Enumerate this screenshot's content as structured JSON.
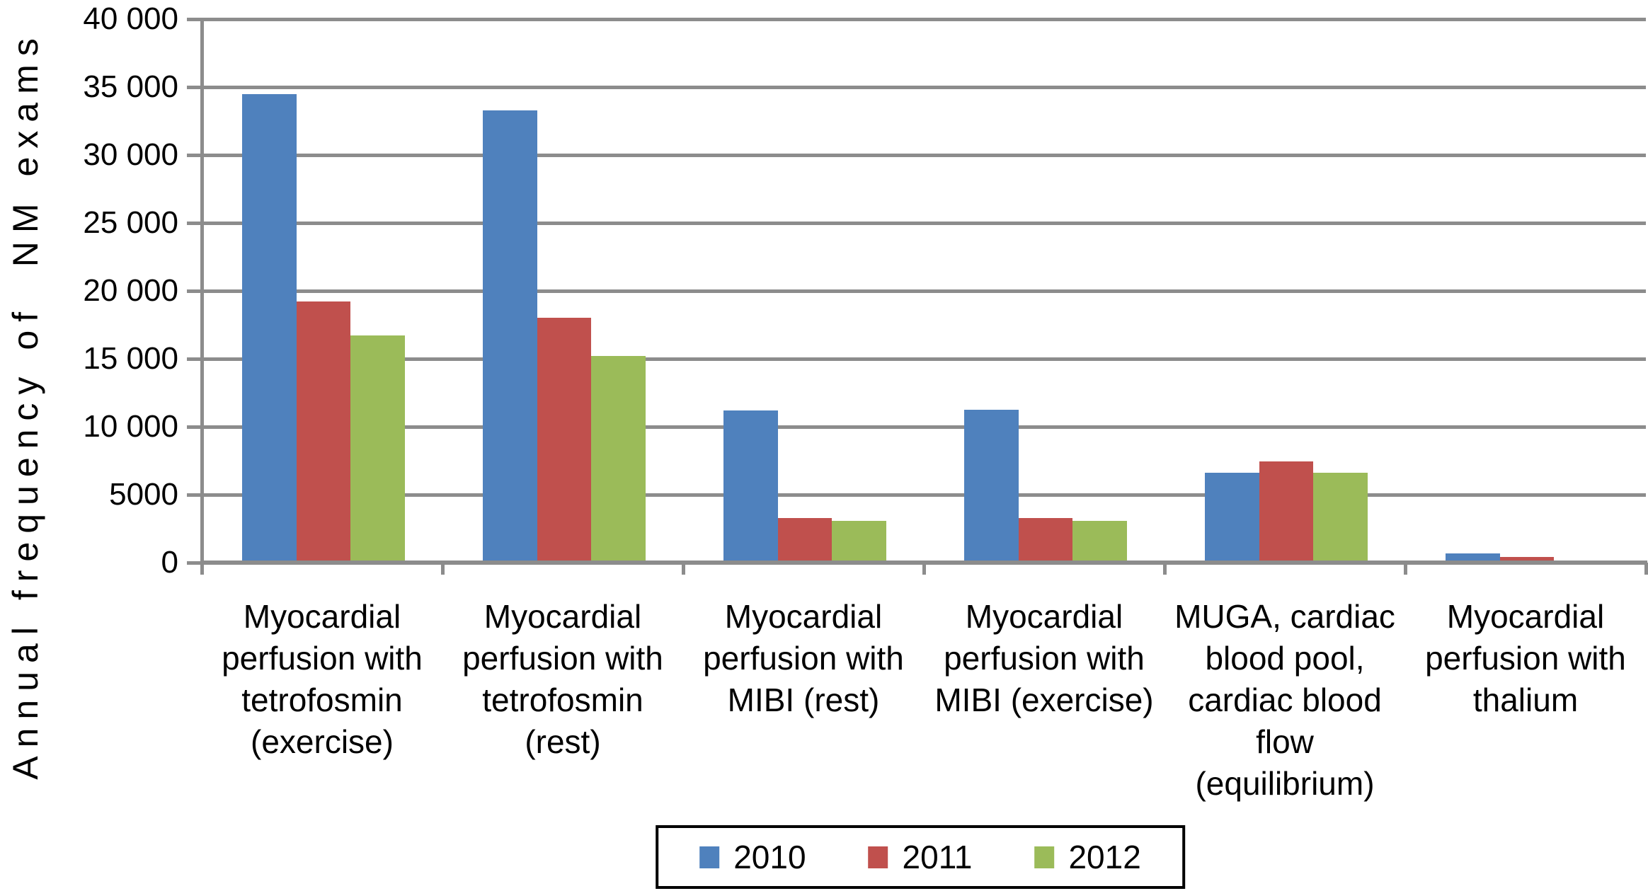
{
  "chart_data": {
    "type": "bar",
    "title": "",
    "ylabel": "Annual frequency of  NM exams",
    "xlabel": "",
    "ylim": [
      0,
      40000
    ],
    "ytick_interval": 5000,
    "ytick_labels_top_to_bottom": [
      "40 000",
      "35 000",
      "30 000",
      "25 000",
      "20 000",
      "15 000",
      "10 000",
      "5000",
      "0"
    ],
    "grid": "horizontal gridlines on",
    "legend_position": "bottom",
    "background_color": "#ffffff",
    "axis_color": "#8c8c8c",
    "categories": [
      "Myocardial\nperfusion with\ntetrofosmin\n(exercise)",
      "Myocardial\nperfusion with\ntetrofosmin\n(rest)",
      "Myocardial\nperfusion with\nMIBI (rest)",
      "Myocardial\nperfusion with\nMIBI (exercise)",
      "MUGA, cardiac\nblood pool,\ncardiac blood\nflow\n(equilibrium)",
      "Myocardial\nperfusion with\nthalium"
    ],
    "series": [
      {
        "name": "2010",
        "color": "#4f81bd",
        "values": [
          34500,
          33300,
          11200,
          11250,
          6600,
          700
        ]
      },
      {
        "name": "2011",
        "color": "#c0504d",
        "values": [
          19200,
          18000,
          3300,
          3300,
          7450,
          400
        ]
      },
      {
        "name": "2012",
        "color": "#9bbb59",
        "values": [
          16700,
          15200,
          3050,
          3050,
          6600,
          0
        ]
      }
    ]
  }
}
